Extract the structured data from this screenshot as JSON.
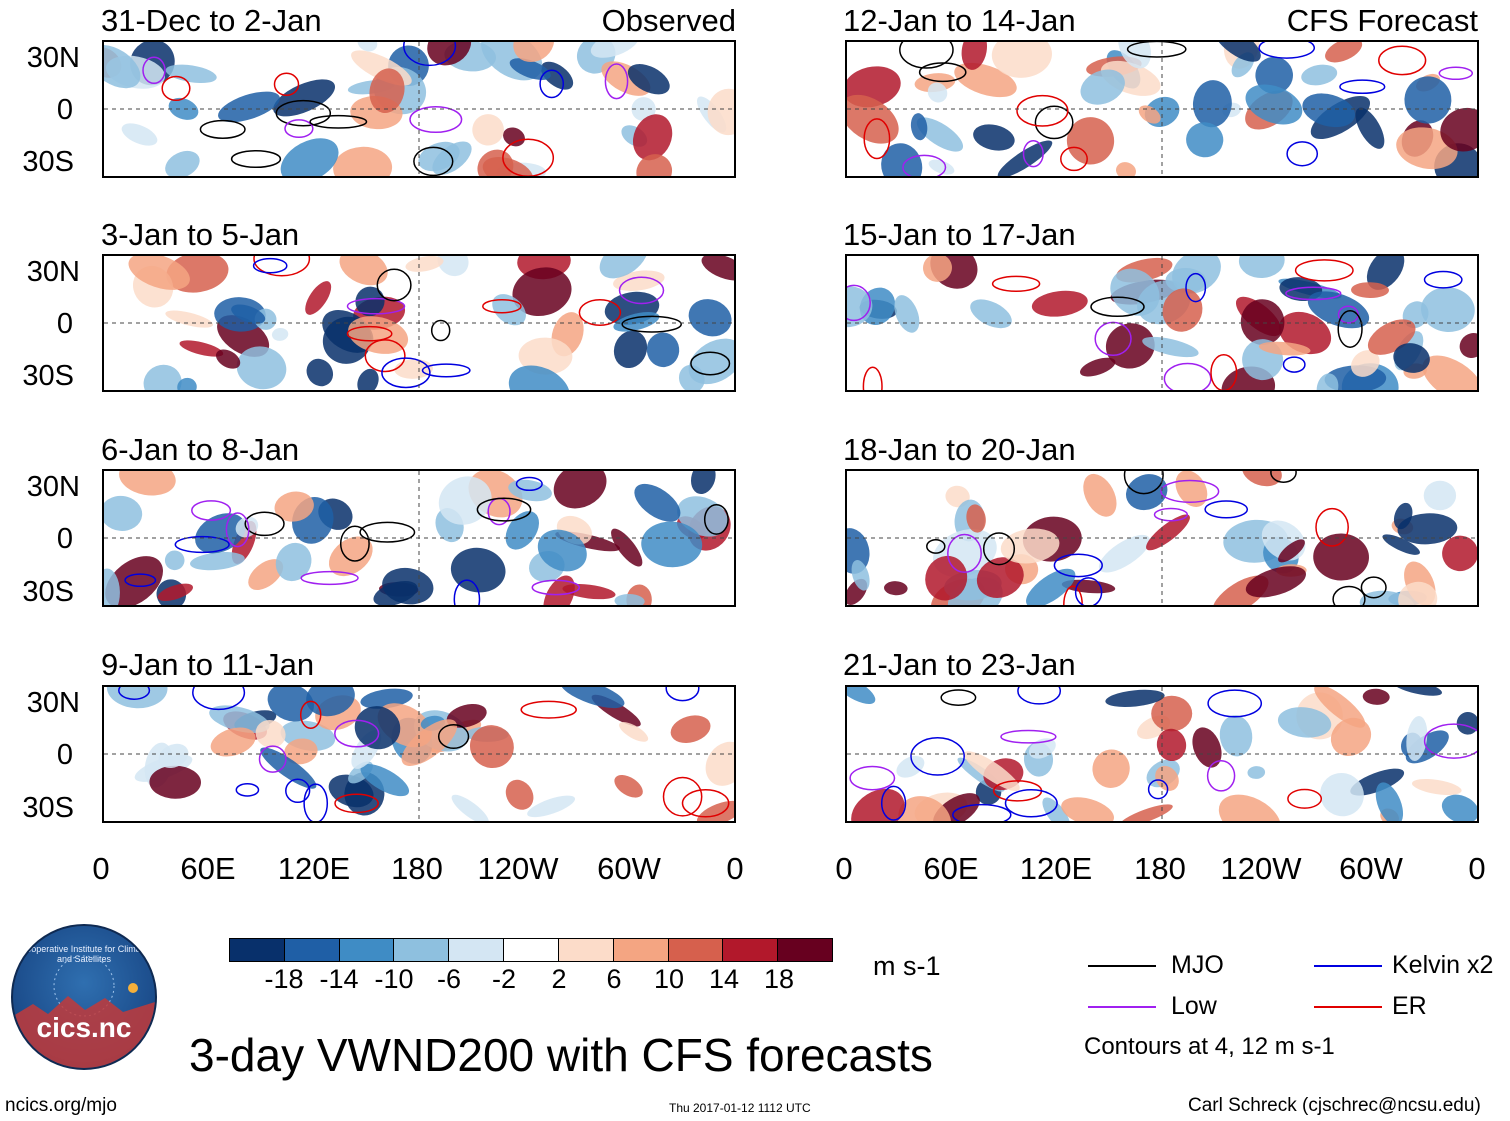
{
  "panels": [
    {
      "title": "31-Dec to 2-Jan",
      "tag": "Observed"
    },
    {
      "title": "12-Jan to 14-Jan",
      "tag": "CFS Forecast"
    },
    {
      "title": "3-Jan to 5-Jan"
    },
    {
      "title": "15-Jan to 17-Jan"
    },
    {
      "title": "6-Jan to 8-Jan"
    },
    {
      "title": "18-Jan to 20-Jan"
    },
    {
      "title": "9-Jan to 11-Jan"
    },
    {
      "title": "21-Jan to 23-Jan"
    }
  ],
  "chart_data": {
    "type": "heatmap",
    "title": "3-day VWND200 with CFS forecasts",
    "variable": "VWND200",
    "latitude_ticks": [
      "30N",
      "0",
      "30S"
    ],
    "longitude_ticks": [
      "0",
      "60E",
      "120E",
      "180",
      "120W",
      "60W",
      "0"
    ],
    "colorbar": {
      "tick_labels": [
        "-18",
        "-14",
        "-10",
        "-6",
        "-2",
        "2",
        "6",
        "10",
        "14",
        "18"
      ],
      "colors": [
        "#08306b",
        "#1f5fa6",
        "#3f8cc5",
        "#8ec0df",
        "#d4e6f3",
        "#ffffff",
        "#fcdcc9",
        "#f4a582",
        "#d6604d",
        "#b2182b",
        "#67001f"
      ],
      "units": "m s-1"
    },
    "contour_legend": [
      {
        "label": "MJO",
        "color": "#000000"
      },
      {
        "label": "Kelvin x2",
        "color": "#0000e0"
      },
      {
        "label": "Low",
        "color": "#a020f0"
      },
      {
        "label": "ER",
        "color": "#e00000"
      }
    ],
    "contour_note": "Contours at 4, 12 m s-1"
  },
  "footer": {
    "url": "ncics.org/mjo",
    "timestamp": "Thu 2017-01-12 1112 UTC",
    "author": "Carl Schreck (cjschrec@ncsu.edu)",
    "logo_text": "cics.nc",
    "logo_ring": "Cooperative Institute for Climate and Satellites"
  }
}
